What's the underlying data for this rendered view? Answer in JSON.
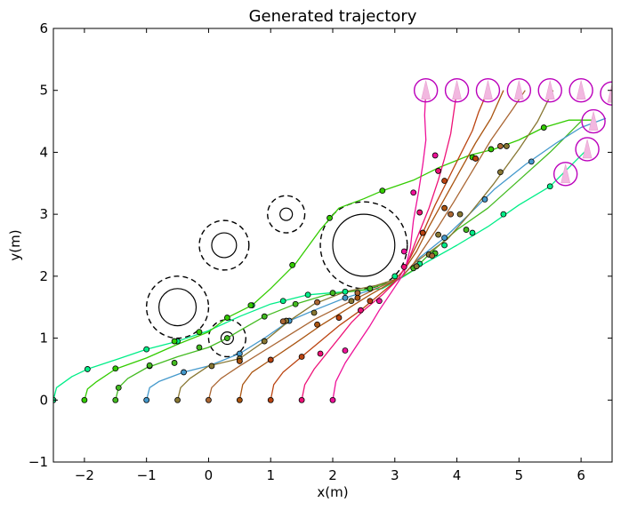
{
  "chart_data": {
    "type": "line",
    "title": "Generated trajectory",
    "xlabel": "x(m)",
    "ylabel": "y(m)",
    "xlim": [
      -2.5,
      6.5
    ],
    "ylim": [
      -1,
      6
    ],
    "xticks": [
      -2,
      -1,
      0,
      1,
      2,
      3,
      4,
      5,
      6
    ],
    "yticks": [
      -1,
      0,
      1,
      2,
      3,
      4,
      5,
      6
    ],
    "x_tick_labels": [
      "−2",
      "−1",
      "0",
      "1",
      "2",
      "3",
      "4",
      "5",
      "6"
    ],
    "y_tick_labels": [
      "−1",
      "0",
      "1",
      "2",
      "3",
      "4",
      "5",
      "6"
    ],
    "grid": false,
    "obstacles": [
      {
        "x": 2.5,
        "y": 2.5,
        "r": 0.5,
        "safety_r": 0.7
      },
      {
        "x": -0.5,
        "y": 1.5,
        "r": 0.3,
        "safety_r": 0.5
      },
      {
        "x": 0.25,
        "y": 2.5,
        "r": 0.2,
        "safety_r": 0.4
      },
      {
        "x": 1.25,
        "y": 3.0,
        "r": 0.1,
        "safety_r": 0.3
      },
      {
        "x": 0.3,
        "y": 1.0,
        "r": 0.1,
        "safety_r": 0.3
      }
    ],
    "goal_markers": [
      {
        "x": 3.5,
        "y": 5.0
      },
      {
        "x": 4.0,
        "y": 5.0
      },
      {
        "x": 4.5,
        "y": 5.0
      },
      {
        "x": 5.0,
        "y": 5.0
      },
      {
        "x": 5.5,
        "y": 5.0
      },
      {
        "x": 6.0,
        "y": 5.0
      },
      {
        "x": 6.5,
        "y": 4.95
      },
      {
        "x": 6.2,
        "y": 4.5
      },
      {
        "x": 6.1,
        "y": 4.05
      },
      {
        "x": 5.75,
        "y": 3.65
      }
    ],
    "goal_marker_color": "#bb00bb",
    "series": [
      {
        "color": "#00ee88",
        "points": [
          [
            -2.5,
            0
          ],
          [
            -2.45,
            0.2
          ],
          [
            -2.2,
            0.38
          ],
          [
            -1.95,
            0.5
          ],
          [
            -1.5,
            0.65
          ],
          [
            -1.0,
            0.82
          ],
          [
            -0.5,
            0.95
          ],
          [
            0,
            1.12
          ],
          [
            0.5,
            1.35
          ],
          [
            1.0,
            1.55
          ],
          [
            1.6,
            1.7
          ],
          [
            2.2,
            1.75
          ],
          [
            2.8,
            1.8
          ],
          [
            3.15,
            2.0
          ],
          [
            3.5,
            2.22
          ],
          [
            4.0,
            2.5
          ],
          [
            4.5,
            2.8
          ],
          [
            5.0,
            3.15
          ],
          [
            5.5,
            3.45
          ],
          [
            6.1,
            4.05
          ]
        ],
        "dots": [
          [
            -2.5,
            0
          ],
          [
            -1.95,
            0.5
          ],
          [
            -1.0,
            0.82
          ],
          [
            -0.5,
            0.95
          ],
          [
            0.7,
            1.53
          ],
          [
            1.2,
            1.6
          ],
          [
            1.6,
            1.7
          ],
          [
            2.2,
            1.75
          ],
          [
            3.0,
            2.0
          ],
          [
            3.4,
            2.2
          ],
          [
            3.8,
            2.5
          ],
          [
            4.25,
            2.7
          ],
          [
            4.75,
            3.0
          ],
          [
            5.5,
            3.45
          ]
        ]
      },
      {
        "color": "#33cc00",
        "points": [
          [
            -2.0,
            0
          ],
          [
            -1.95,
            0.18
          ],
          [
            -1.8,
            0.3
          ],
          [
            -1.5,
            0.5
          ],
          [
            -1.0,
            0.68
          ],
          [
            -0.5,
            0.9
          ],
          [
            0,
            1.1
          ],
          [
            0.3,
            1.33
          ],
          [
            0.7,
            1.53
          ],
          [
            1.0,
            1.8
          ],
          [
            1.4,
            2.2
          ],
          [
            1.8,
            2.75
          ],
          [
            2.1,
            3.1
          ],
          [
            2.5,
            3.25
          ],
          [
            2.8,
            3.38
          ],
          [
            3.3,
            3.55
          ],
          [
            3.7,
            3.75
          ],
          [
            4.2,
            3.95
          ],
          [
            4.6,
            4.05
          ],
          [
            5.0,
            4.2
          ],
          [
            5.4,
            4.4
          ],
          [
            5.8,
            4.52
          ],
          [
            6.2,
            4.52
          ]
        ],
        "dots": [
          [
            -2.0,
            0
          ],
          [
            -1.5,
            0.51
          ],
          [
            -0.95,
            0.55
          ],
          [
            -0.55,
            0.95
          ],
          [
            -0.15,
            1.1
          ],
          [
            0.3,
            1.33
          ],
          [
            0.68,
            1.53
          ],
          [
            1.35,
            2.18
          ],
          [
            1.95,
            2.94
          ],
          [
            2.8,
            3.38
          ],
          [
            3.7,
            3.7
          ],
          [
            4.25,
            3.92
          ],
          [
            4.55,
            4.05
          ],
          [
            5.4,
            4.4
          ]
        ]
      },
      {
        "color": "#44bb22",
        "points": [
          [
            -1.5,
            0
          ],
          [
            -1.45,
            0.2
          ],
          [
            -1.3,
            0.35
          ],
          [
            -1.0,
            0.52
          ],
          [
            -0.5,
            0.7
          ],
          [
            0,
            0.85
          ],
          [
            0.3,
            1.0
          ],
          [
            0.5,
            1.12
          ],
          [
            0.9,
            1.35
          ],
          [
            1.4,
            1.55
          ],
          [
            1.9,
            1.7
          ],
          [
            2.5,
            1.78
          ],
          [
            3.0,
            1.92
          ],
          [
            3.3,
            2.1
          ],
          [
            3.6,
            2.4
          ],
          [
            4.0,
            2.75
          ],
          [
            4.5,
            3.1
          ],
          [
            5.0,
            3.55
          ],
          [
            5.5,
            4.0
          ],
          [
            6.0,
            4.5
          ]
        ],
        "dots": [
          [
            -1.5,
            0
          ],
          [
            -1.45,
            0.2
          ],
          [
            -0.95,
            0.56
          ],
          [
            -0.55,
            0.6
          ],
          [
            -0.15,
            0.85
          ],
          [
            0.3,
            1.0
          ],
          [
            0.9,
            1.35
          ],
          [
            1.4,
            1.55
          ],
          [
            2.0,
            1.73
          ],
          [
            2.6,
            1.8
          ],
          [
            3.3,
            2.13
          ],
          [
            3.65,
            2.37
          ],
          [
            4.15,
            2.75
          ]
        ]
      },
      {
        "color": "#4499cc",
        "points": [
          [
            -1.0,
            0
          ],
          [
            -0.95,
            0.2
          ],
          [
            -0.8,
            0.3
          ],
          [
            -0.4,
            0.45
          ],
          [
            0,
            0.55
          ],
          [
            0.5,
            0.75
          ],
          [
            0.9,
            1.0
          ],
          [
            1.3,
            1.28
          ],
          [
            1.7,
            1.45
          ],
          [
            2.2,
            1.65
          ],
          [
            2.7,
            1.8
          ],
          [
            3.1,
            1.98
          ],
          [
            3.4,
            2.3
          ],
          [
            3.8,
            2.62
          ],
          [
            4.2,
            3.0
          ],
          [
            4.6,
            3.4
          ],
          [
            5.1,
            3.8
          ],
          [
            5.6,
            4.15
          ],
          [
            6.0,
            4.4
          ],
          [
            6.4,
            4.55
          ]
        ],
        "dots": [
          [
            -1.0,
            0
          ],
          [
            -0.4,
            0.45
          ],
          [
            0.5,
            0.75
          ],
          [
            1.3,
            1.28
          ],
          [
            2.2,
            1.65
          ],
          [
            3.8,
            2.62
          ],
          [
            4.45,
            3.24
          ],
          [
            5.2,
            3.85
          ]
        ]
      },
      {
        "color": "#887733",
        "points": [
          [
            -0.5,
            0
          ],
          [
            -0.45,
            0.2
          ],
          [
            -0.3,
            0.35
          ],
          [
            0,
            0.55
          ],
          [
            0.5,
            0.67
          ],
          [
            0.9,
            0.95
          ],
          [
            1.3,
            1.28
          ],
          [
            1.7,
            1.55
          ],
          [
            2.2,
            1.75
          ],
          [
            2.7,
            1.85
          ],
          [
            3.1,
            1.98
          ],
          [
            3.3,
            2.2
          ],
          [
            3.5,
            2.35
          ],
          [
            3.85,
            2.6
          ],
          [
            4.2,
            3.0
          ],
          [
            4.6,
            3.5
          ],
          [
            5.0,
            4.05
          ],
          [
            5.3,
            4.5
          ],
          [
            5.55,
            5.0
          ]
        ],
        "dots": [
          [
            -0.5,
            0
          ],
          [
            0.05,
            0.55
          ],
          [
            0.5,
            0.67
          ],
          [
            0.9,
            0.95
          ],
          [
            1.25,
            1.28
          ],
          [
            1.7,
            1.41
          ],
          [
            2.3,
            1.6
          ],
          [
            3.35,
            2.16
          ],
          [
            3.55,
            2.35
          ],
          [
            3.7,
            2.67
          ],
          [
            4.05,
            3.0
          ],
          [
            4.7,
            3.68
          ],
          [
            4.8,
            4.1
          ]
        ]
      },
      {
        "color": "#aa6633",
        "points": [
          [
            0,
            0
          ],
          [
            0.05,
            0.2
          ],
          [
            0.2,
            0.35
          ],
          [
            0.5,
            0.55
          ],
          [
            0.9,
            0.8
          ],
          [
            1.3,
            1.05
          ],
          [
            1.7,
            1.3
          ],
          [
            2.2,
            1.55
          ],
          [
            2.7,
            1.8
          ],
          [
            3.1,
            1.98
          ],
          [
            3.3,
            2.2
          ],
          [
            3.5,
            2.5
          ],
          [
            3.7,
            2.8
          ],
          [
            3.95,
            3.2
          ],
          [
            4.25,
            3.7
          ],
          [
            4.55,
            4.2
          ],
          [
            4.9,
            4.7
          ],
          [
            5.1,
            5.0
          ]
        ],
        "dots": [
          [
            0,
            0
          ],
          [
            0.5,
            0.63
          ],
          [
            1.2,
            1.27
          ],
          [
            1.75,
            1.58
          ],
          [
            2.4,
            1.73
          ],
          [
            3.6,
            2.33
          ],
          [
            3.9,
            3.0
          ],
          [
            4.7,
            4.1
          ]
        ]
      },
      {
        "color": "#aa5511",
        "points": [
          [
            0.5,
            0
          ],
          [
            0.55,
            0.25
          ],
          [
            0.7,
            0.45
          ],
          [
            1.0,
            0.65
          ],
          [
            1.4,
            0.92
          ],
          [
            1.8,
            1.2
          ],
          [
            2.2,
            1.45
          ],
          [
            2.6,
            1.7
          ],
          [
            2.95,
            1.9
          ],
          [
            3.15,
            2.1
          ],
          [
            3.35,
            2.4
          ],
          [
            3.55,
            2.8
          ],
          [
            3.8,
            3.25
          ],
          [
            4.05,
            3.7
          ],
          [
            4.3,
            4.15
          ],
          [
            4.55,
            4.55
          ],
          [
            4.75,
            5.0
          ]
        ],
        "dots": [
          [
            0.5,
            0
          ],
          [
            0.5,
            0.63
          ],
          [
            1.0,
            0.65
          ],
          [
            1.75,
            1.22
          ],
          [
            2.4,
            1.65
          ],
          [
            3.45,
            2.7
          ],
          [
            3.8,
            3.1
          ],
          [
            4.3,
            3.9
          ]
        ]
      },
      {
        "color": "#bb4411",
        "points": [
          [
            1.0,
            0
          ],
          [
            1.05,
            0.25
          ],
          [
            1.2,
            0.45
          ],
          [
            1.5,
            0.7
          ],
          [
            1.8,
            0.95
          ],
          [
            2.1,
            1.2
          ],
          [
            2.45,
            1.45
          ],
          [
            2.75,
            1.7
          ],
          [
            3.05,
            1.95
          ],
          [
            3.25,
            2.3
          ],
          [
            3.45,
            2.7
          ],
          [
            3.65,
            3.15
          ],
          [
            3.85,
            3.55
          ],
          [
            4.05,
            3.95
          ],
          [
            4.25,
            4.35
          ],
          [
            4.35,
            4.65
          ],
          [
            4.5,
            5.0
          ]
        ],
        "dots": [
          [
            1.0,
            0
          ],
          [
            1.0,
            0.65
          ],
          [
            1.5,
            0.7
          ],
          [
            2.1,
            1.33
          ],
          [
            2.6,
            1.6
          ],
          [
            3.45,
            2.7
          ],
          [
            3.8,
            3.54
          ],
          [
            4.3,
            3.9
          ]
        ]
      },
      {
        "color": "#ee1177",
        "points": [
          [
            1.5,
            0
          ],
          [
            1.55,
            0.25
          ],
          [
            1.7,
            0.5
          ],
          [
            1.9,
            0.75
          ],
          [
            2.1,
            1.0
          ],
          [
            2.3,
            1.25
          ],
          [
            2.5,
            1.45
          ],
          [
            2.8,
            1.7
          ],
          [
            3.05,
            1.95
          ],
          [
            3.2,
            2.2
          ],
          [
            3.35,
            2.6
          ],
          [
            3.55,
            3.1
          ],
          [
            3.7,
            3.55
          ],
          [
            3.8,
            3.9
          ],
          [
            3.9,
            4.3
          ],
          [
            3.95,
            4.65
          ],
          [
            4.0,
            5.0
          ]
        ],
        "dots": [
          [
            1.5,
            0
          ],
          [
            1.8,
            0.75
          ],
          [
            2.45,
            1.45
          ],
          [
            3.15,
            2.15
          ],
          [
            3.4,
            3.03
          ],
          [
            3.7,
            3.7
          ]
        ]
      },
      {
        "color": "#ee1199",
        "points": [
          [
            2.0,
            0
          ],
          [
            2.05,
            0.3
          ],
          [
            2.2,
            0.6
          ],
          [
            2.4,
            0.9
          ],
          [
            2.6,
            1.2
          ],
          [
            2.75,
            1.45
          ],
          [
            2.95,
            1.75
          ],
          [
            3.15,
            2.05
          ],
          [
            3.25,
            2.45
          ],
          [
            3.3,
            2.9
          ],
          [
            3.38,
            3.35
          ],
          [
            3.45,
            3.8
          ],
          [
            3.5,
            4.2
          ],
          [
            3.48,
            4.6
          ],
          [
            3.5,
            5.0
          ]
        ],
        "dots": [
          [
            2.0,
            0
          ],
          [
            2.2,
            0.8
          ],
          [
            2.75,
            1.6
          ],
          [
            3.15,
            2.4
          ],
          [
            3.3,
            3.35
          ],
          [
            3.65,
            3.95
          ]
        ]
      }
    ]
  }
}
